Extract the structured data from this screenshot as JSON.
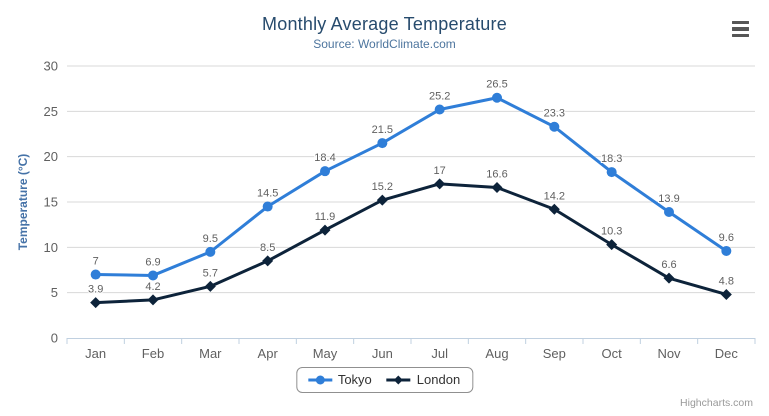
{
  "header": {
    "title": "Monthly Average Temperature",
    "subtitle": "Source: WorldClimate.com"
  },
  "colors": {
    "title": "#274b6d",
    "subtitle": "#4d759e",
    "axis_title": "#4572a7",
    "tick_label": "#606060",
    "data_label": "#606060",
    "grid_line": "#d8d8d8",
    "axis_line": "#c0d0e0",
    "legend_border": "#909090",
    "legend_text": "#333333",
    "credit": "#999999",
    "menu_icon": "#565656"
  },
  "chart_data": {
    "type": "line",
    "title": "Monthly Average Temperature",
    "subtitle": "Source: WorldClimate.com",
    "xlabel": "",
    "ylabel": "Temperature (°C)",
    "ylim": [
      0,
      30
    ],
    "ytick_step": 5,
    "yticks": [
      0,
      5,
      10,
      15,
      20,
      25,
      30
    ],
    "grid": true,
    "data_labels": true,
    "legend_position": "bottom-center",
    "categories": [
      "Jan",
      "Feb",
      "Mar",
      "Apr",
      "May",
      "Jun",
      "Jul",
      "Aug",
      "Sep",
      "Oct",
      "Nov",
      "Dec"
    ],
    "series": [
      {
        "name": "Tokyo",
        "color": "#2f7ed8",
        "marker": "circle",
        "values": [
          7,
          6.9,
          9.5,
          14.5,
          18.4,
          21.5,
          25.2,
          26.5,
          23.3,
          18.3,
          13.9,
          9.6
        ]
      },
      {
        "name": "London",
        "color": "#0d233a",
        "marker": "diamond",
        "values": [
          3.9,
          4.2,
          5.7,
          8.5,
          11.9,
          15.2,
          17,
          16.6,
          14.2,
          10.3,
          6.6,
          4.8
        ]
      }
    ]
  },
  "legend": {
    "items": [
      "Tokyo",
      "London"
    ]
  },
  "credits": {
    "label": "Highcharts.com"
  },
  "icons": {
    "context_menu": "hamburger-icon"
  }
}
